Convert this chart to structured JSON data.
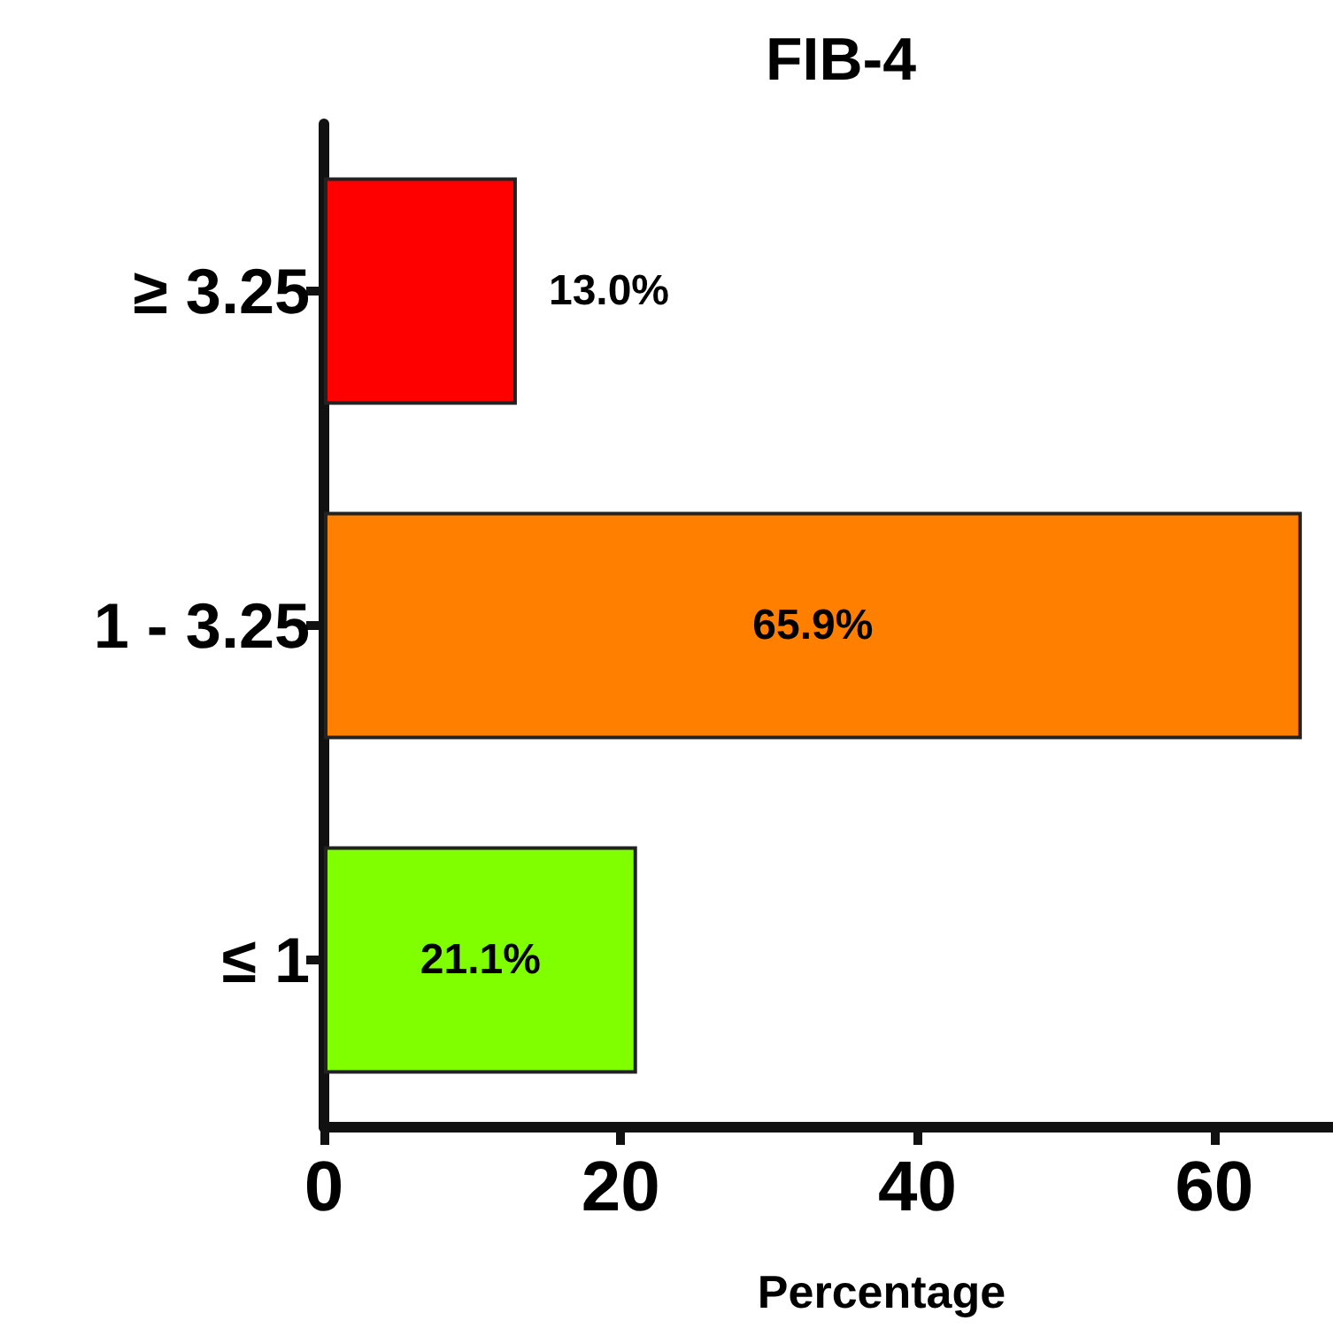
{
  "chart_data": {
    "type": "bar",
    "title": "FIB-4",
    "xlabel": "Percentage",
    "orientation": "horizontal",
    "categories": [
      "≥ 3.25",
      "1 - 3.25",
      "≤ 1"
    ],
    "values": [
      13.0,
      65.9,
      21.1
    ],
    "colors": [
      "#ff0000",
      "#ff8000",
      "#80ff00"
    ],
    "value_labels": [
      "13.0%",
      "65.9%",
      "21.1%"
    ],
    "xlim": [
      0,
      68
    ],
    "xticks": [
      0,
      20,
      40,
      60
    ]
  }
}
